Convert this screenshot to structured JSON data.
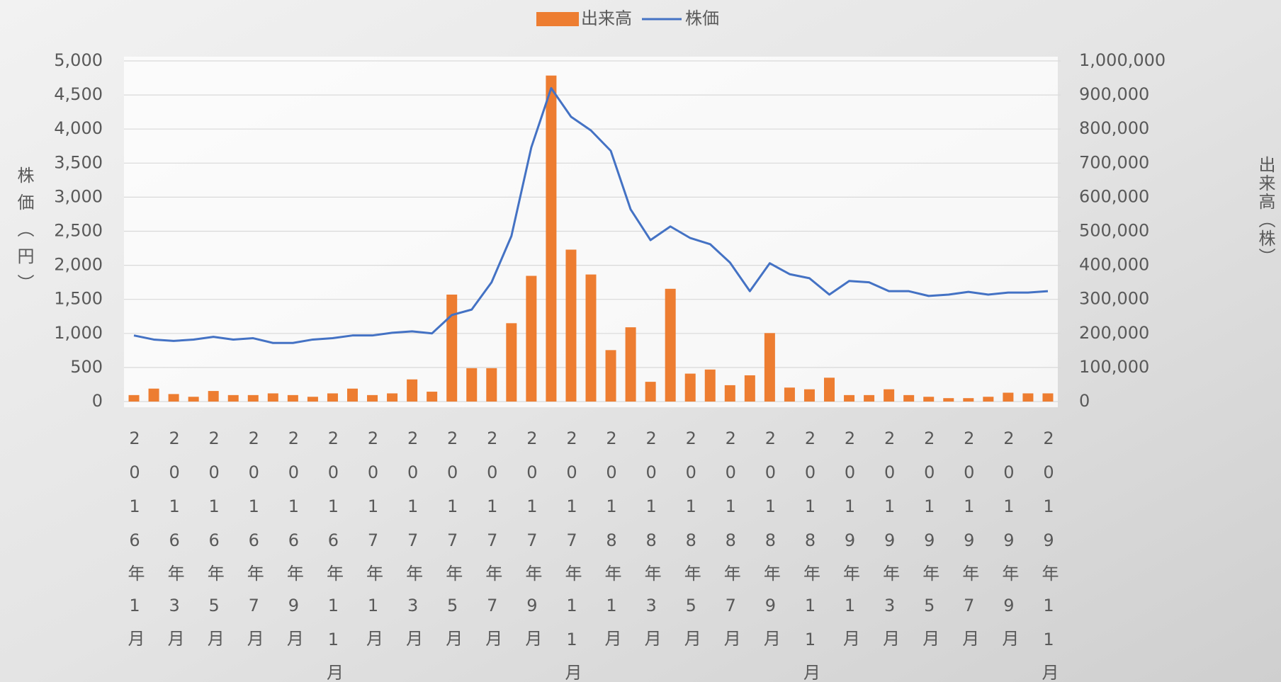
{
  "chart_data": {
    "type": "bar_line",
    "categories": [
      "2016年1月",
      null,
      "2016年3月",
      null,
      "2016年5月",
      null,
      "2016年7月",
      null,
      "2016年9月",
      null,
      "2016年11月",
      null,
      "2017年1月",
      null,
      "2017年3月",
      null,
      "2017年5月",
      null,
      "2017年7月",
      null,
      "2017年9月",
      null,
      "2017年11月",
      null,
      "2018年1月",
      null,
      "2018年3月",
      null,
      "2018年5月",
      null,
      "2018年7月",
      null,
      "2018年9月",
      null,
      "2018年11月",
      null,
      "2019年1月",
      null,
      "2019年3月",
      null,
      "2019年5月",
      null,
      "2019年7月",
      null,
      "2019年9月",
      null,
      "2019年11月"
    ],
    "series": [
      {
        "name": "出来高",
        "type": "bar",
        "axis": "y2",
        "color": "#ed7d31",
        "values": [
          19000,
          38000,
          22000,
          14000,
          31000,
          19000,
          19000,
          24000,
          19000,
          14000,
          24000,
          38000,
          19000,
          24000,
          65000,
          29000,
          314000,
          98000,
          98000,
          230000,
          369000,
          957000,
          446000,
          373000,
          151000,
          218000,
          58000,
          331000,
          82000,
          94000,
          48000,
          77000,
          201000,
          41000,
          36000,
          70000,
          19000,
          19000,
          36000,
          19000,
          14000,
          10000,
          10000,
          14000,
          26000,
          24000,
          24000
        ]
      },
      {
        "name": "株価",
        "type": "line",
        "color": "#4472c4",
        "values": [
          970,
          910,
          890,
          910,
          950,
          910,
          930,
          860,
          860,
          910,
          930,
          970,
          970,
          1010,
          1030,
          1000,
          1270,
          1350,
          1750,
          2430,
          3730,
          4600,
          4180,
          3980,
          3680,
          2820,
          2370,
          2570,
          2400,
          2310,
          2040,
          1620,
          2030,
          1870,
          1810,
          1570,
          1770,
          1750,
          1620,
          1620,
          1550,
          1570,
          1610,
          1570,
          1600,
          1600,
          1620
        ]
      }
    ],
    "y_label": "株価（円）",
    "y2_label": "出来高（株）",
    "ylim": [
      0,
      5000
    ],
    "yticks": [
      0,
      500,
      {
        "value": 1000,
        "label": "1,000"
      },
      {
        "value": 1500,
        "label": "1,500"
      },
      {
        "value": 2000,
        "label": "2,000"
      },
      {
        "value": 2500,
        "label": "2,500"
      },
      {
        "value": 3000,
        "label": "3,000"
      },
      {
        "value": 3500,
        "label": "3,500"
      },
      {
        "value": 4000,
        "label": "4,000"
      },
      {
        "value": 4500,
        "label": "4,500"
      },
      {
        "value": 5000,
        "label": "5,000"
      }
    ],
    "y2lim": [
      0,
      1000000
    ],
    "y2ticks": [
      0,
      {
        "value": 100000,
        "label": "100,000"
      },
      {
        "value": 200000,
        "label": "200,000"
      },
      {
        "value": 300000,
        "label": "300,000"
      },
      {
        "value": 400000,
        "label": "400,000"
      },
      {
        "value": 500000,
        "label": "500,000"
      },
      {
        "value": 600000,
        "label": "600,000"
      },
      {
        "value": 700000,
        "label": "700,000"
      },
      {
        "value": 800000,
        "label": "800,000"
      },
      {
        "value": 900000,
        "label": "900,000"
      },
      {
        "value": 1000000,
        "label": "1,000,000"
      }
    ],
    "grid": true,
    "legend": "top"
  }
}
